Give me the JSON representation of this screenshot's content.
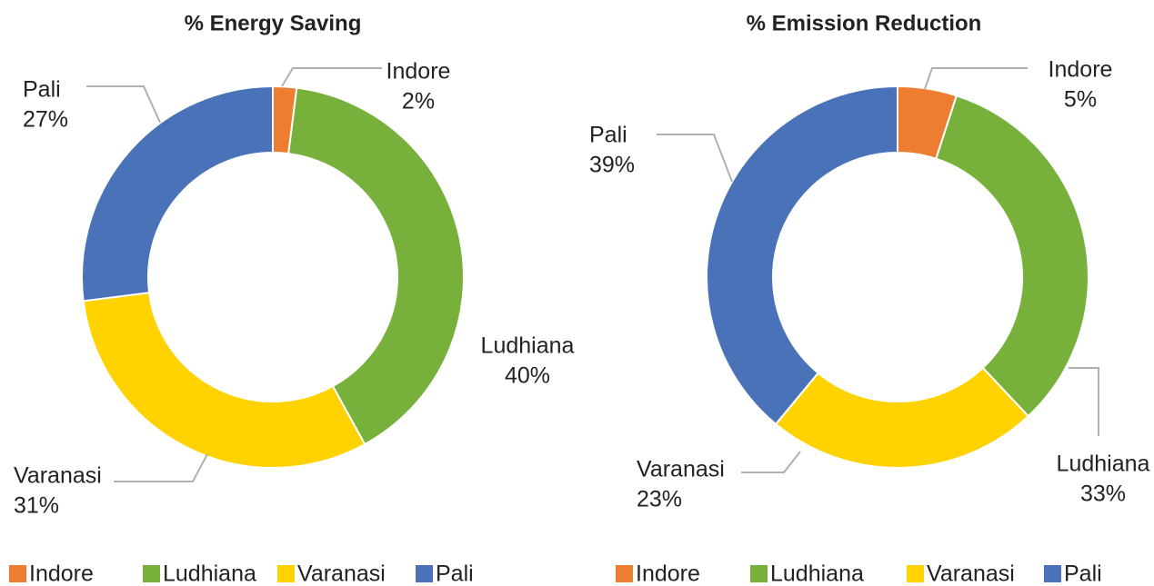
{
  "chart_data": [
    {
      "type": "pie",
      "title": "% Energy Saving",
      "categories": [
        "Indore",
        "Ludhiana",
        "Varanasi",
        "Pali"
      ],
      "values": [
        2,
        40,
        31,
        27
      ],
      "value_labels": [
        "2%",
        "40%",
        "31%",
        "27%"
      ],
      "colors": [
        "#ED7D31",
        "#77B03B",
        "#FFD200",
        "#4A72B8"
      ]
    },
    {
      "type": "pie",
      "title": "% Emission Reduction",
      "categories": [
        "Indore",
        "Ludhiana",
        "Varanasi",
        "Pali"
      ],
      "values": [
        5,
        33,
        23,
        39
      ],
      "value_labels": [
        "5%",
        "33%",
        "23%",
        "39%"
      ],
      "colors": [
        "#ED7D31",
        "#77B03B",
        "#FFD200",
        "#4A72B8"
      ]
    }
  ]
}
